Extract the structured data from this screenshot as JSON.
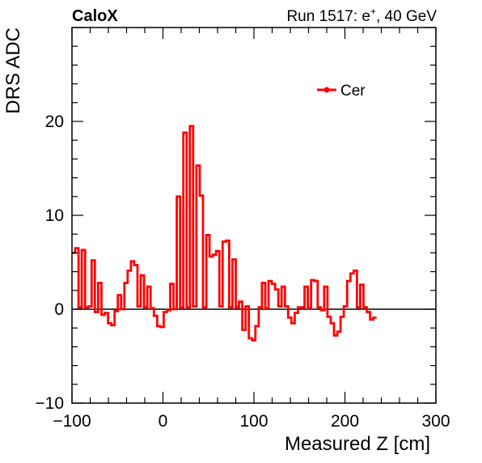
{
  "chart_data": {
    "type": "line",
    "experiment_label": "CaloX",
    "run_label_main": "Run 1517: e",
    "run_label_sup": "+",
    "run_label_tail": ", 40 GeV",
    "xlabel": "Measured Z [cm]",
    "ylabel": "DRS ADC",
    "xlim": [
      -100,
      300
    ],
    "ylim": [
      -10,
      30
    ],
    "x_ticks": [
      -100,
      0,
      100,
      200,
      300
    ],
    "x_tick_labels": [
      "−100",
      "0",
      "100",
      "200",
      "300"
    ],
    "y_ticks": [
      -10,
      0,
      10,
      20
    ],
    "y_tick_labels": [
      "−10",
      "0",
      "10",
      "20"
    ],
    "legend": {
      "position": "top-right",
      "entries": [
        "Cer"
      ]
    },
    "grid": false,
    "bin_width_cm": 3.6,
    "series": [
      {
        "name": "Cer",
        "color": "#ff0000",
        "x_start": -100,
        "values": [
          6,
          6.5,
          0.2,
          6.3,
          0.2,
          0.3,
          5.2,
          -0.3,
          2.8,
          -0.6,
          -0.4,
          -1.5,
          -1.7,
          -0.2,
          1.5,
          0.0,
          2.8,
          4.1,
          5.1,
          4.7,
          0.3,
          3.6,
          0.2,
          2.4,
          0.1,
          -0.7,
          -1.8,
          -1.9,
          -0.3,
          -0.1,
          2.7,
          0.0,
          12.0,
          0.2,
          18.8,
          0.2,
          19.5,
          0.3,
          15.3,
          12.1,
          0.2,
          7.9,
          5.6,
          5.8,
          6.2,
          0.3,
          7.2,
          7.3,
          0.2,
          5.3,
          0.2,
          0.8,
          -2.2,
          0.3,
          -3.1,
          -3.3,
          -1.8,
          0.2,
          2.8,
          0.1,
          3.0,
          2.7,
          2.1,
          0.3,
          2.4,
          0.3,
          -0.9,
          -1.5,
          -0.4,
          0.2,
          0.2,
          2.4,
          0.1,
          3.1,
          3.0,
          0.2,
          -0.1,
          2.4,
          -0.8,
          -1.5,
          -2.8,
          -2.4,
          -0.8,
          0.3,
          3.0,
          3.8,
          4.1,
          0.2,
          2.6,
          0.2,
          -0.3,
          -1.1,
          -0.9
        ]
      }
    ]
  }
}
